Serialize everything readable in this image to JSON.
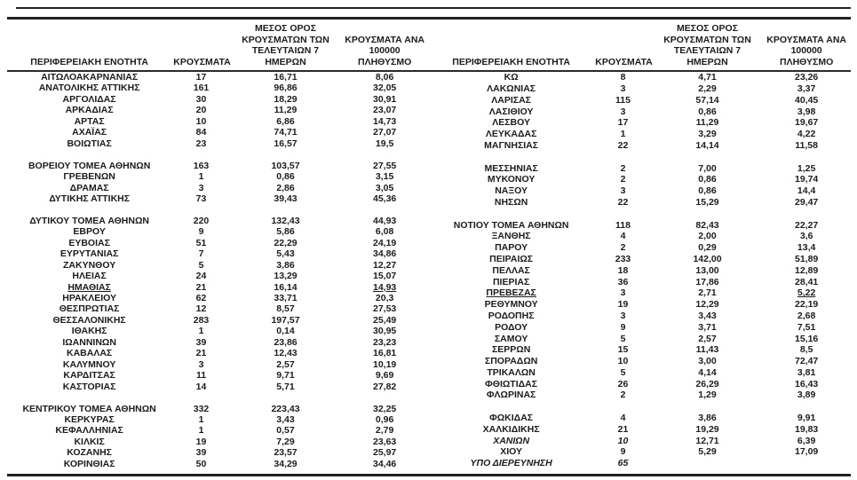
{
  "header": {
    "region": "ΠΕΡΙΦΕΡΕΙΑΚΗ ΕΝΟΤΗΤΑ",
    "cases": "ΚΡΟΥΣΜΑΤΑ",
    "avg7": "ΜΕΣΟΣ ΟΡΟΣ\nΚΡΟΥΣΜΑΤΩΝ ΤΩΝ\nΤΕΛΕΥΤΑΙΩΝ 7 ΗΜΕΡΩΝ",
    "per100k": "ΚΡΟΥΣΜΑΤΑ ΑΝΑ 100000\nΠΛΗΘΥΣΜΟ"
  },
  "left_table": {
    "groups": [
      [
        {
          "name": "ΑΙΤΩΛΟΑΚΑΡΝΑΝΙΑΣ",
          "cases": "17",
          "avg7": "16,71",
          "per100k": "8,06"
        },
        {
          "name": "ΑΝΑΤΟΛΙΚΗΣ ΑΤΤΙΚΗΣ",
          "cases": "161",
          "avg7": "96,86",
          "per100k": "32,05"
        },
        {
          "name": "ΑΡΓΟΛΙΔΑΣ",
          "cases": "30",
          "avg7": "18,29",
          "per100k": "30,91"
        },
        {
          "name": "ΑΡΚΑΔΙΑΣ",
          "cases": "20",
          "avg7": "11,29",
          "per100k": "23,07"
        },
        {
          "name": "ΑΡΤΑΣ",
          "cases": "10",
          "avg7": "6,86",
          "per100k": "14,73"
        },
        {
          "name": "ΑΧΑΪΑΣ",
          "cases": "84",
          "avg7": "74,71",
          "per100k": "27,07"
        },
        {
          "name": "ΒΟΙΩΤΙΑΣ",
          "cases": "23",
          "avg7": "16,57",
          "per100k": "19,5"
        }
      ],
      [
        {
          "name": "ΒΟΡΕΙΟΥ ΤΟΜΕΑ ΑΘΗΝΩΝ",
          "cases": "163",
          "avg7": "103,57",
          "per100k": "27,55"
        },
        {
          "name": "ΓΡΕΒΕΝΩΝ",
          "cases": "1",
          "avg7": "0,86",
          "per100k": "3,15"
        },
        {
          "name": "ΔΡΑΜΑΣ",
          "cases": "3",
          "avg7": "2,86",
          "per100k": "3,05"
        },
        {
          "name": "ΔΥΤΙΚΗΣ ΑΤΤΙΚΗΣ",
          "cases": "73",
          "avg7": "39,43",
          "per100k": "45,36"
        }
      ],
      [
        {
          "name": "ΔΥΤΙΚΟΥ ΤΟΜΕΑ ΑΘΗΝΩΝ",
          "cases": "220",
          "avg7": "132,43",
          "per100k": "44,93"
        },
        {
          "name": "ΕΒΡΟΥ",
          "cases": "9",
          "avg7": "5,86",
          "per100k": "6,08"
        },
        {
          "name": "ΕΥΒΟΙΑΣ",
          "cases": "51",
          "avg7": "22,29",
          "per100k": "24,19"
        },
        {
          "name": "ΕΥΡΥΤΑΝΙΑΣ",
          "cases": "7",
          "avg7": "5,43",
          "per100k": "34,86"
        },
        {
          "name": "ΖΑΚΥΝΘΟΥ",
          "cases": "5",
          "avg7": "3,86",
          "per100k": "12,27"
        },
        {
          "name": "ΗΛΕΙΑΣ",
          "cases": "24",
          "avg7": "13,29",
          "per100k": "15,07"
        },
        {
          "name": "ΗΜΑΘΙΑΣ",
          "cases": "21",
          "avg7": "16,14",
          "per100k": "14,93",
          "underline": true
        },
        {
          "name": "ΗΡΑΚΛΕΙΟΥ",
          "cases": "62",
          "avg7": "33,71",
          "per100k": "20,3"
        },
        {
          "name": "ΘΕΣΠΡΩΤΙΑΣ",
          "cases": "12",
          "avg7": "8,57",
          "per100k": "27,53"
        },
        {
          "name": "ΘΕΣΣΑΛΟΝΙΚΗΣ",
          "cases": "283",
          "avg7": "197,57",
          "per100k": "25,49"
        },
        {
          "name": "ΙΘΑΚΗΣ",
          "cases": "1",
          "avg7": "0,14",
          "per100k": "30,95"
        },
        {
          "name": "ΙΩΑΝΝΙΝΩΝ",
          "cases": "39",
          "avg7": "23,86",
          "per100k": "23,23"
        },
        {
          "name": "ΚΑΒΑΛΑΣ",
          "cases": "21",
          "avg7": "12,43",
          "per100k": "16,81"
        },
        {
          "name": "ΚΑΛΥΜΝΟΥ",
          "cases": "3",
          "avg7": "2,57",
          "per100k": "10,19"
        },
        {
          "name": "ΚΑΡΔΙΤΣΑΣ",
          "cases": "11",
          "avg7": "9,71",
          "per100k": "9,69"
        },
        {
          "name": "ΚΑΣΤΟΡΙΑΣ",
          "cases": "14",
          "avg7": "5,71",
          "per100k": "27,82"
        }
      ],
      [
        {
          "name": "ΚΕΝΤΡΙΚΟΥ ΤΟΜΕΑ ΑΘΗΝΩΝ",
          "cases": "332",
          "avg7": "223,43",
          "per100k": "32,25"
        },
        {
          "name": "ΚΕΡΚΥΡΑΣ",
          "cases": "1",
          "avg7": "3,43",
          "per100k": "0,96"
        },
        {
          "name": "ΚΕΦΑΛΛΗΝΙΑΣ",
          "cases": "1",
          "avg7": "0,57",
          "per100k": "2,79"
        },
        {
          "name": "ΚΙΛΚΙΣ",
          "cases": "19",
          "avg7": "7,29",
          "per100k": "23,63"
        },
        {
          "name": "ΚΟΖΑΝΗΣ",
          "cases": "39",
          "avg7": "23,57",
          "per100k": "25,97"
        },
        {
          "name": "ΚΟΡΙΝΘΙΑΣ",
          "cases": "50",
          "avg7": "34,29",
          "per100k": "34,46"
        }
      ]
    ]
  },
  "right_table": {
    "groups": [
      [
        {
          "name": "ΚΩ",
          "cases": "8",
          "avg7": "4,71",
          "per100k": "23,26"
        },
        {
          "name": "ΛΑΚΩΝΙΑΣ",
          "cases": "3",
          "avg7": "2,29",
          "per100k": "3,37"
        },
        {
          "name": "ΛΑΡΙΣΑΣ",
          "cases": "115",
          "avg7": "57,14",
          "per100k": "40,45"
        },
        {
          "name": "ΛΑΣΙΘΙΟΥ",
          "cases": "3",
          "avg7": "0,86",
          "per100k": "3,98"
        },
        {
          "name": "ΛΕΣΒΟΥ",
          "cases": "17",
          "avg7": "11,29",
          "per100k": "19,67"
        },
        {
          "name": "ΛΕΥΚΑΔΑΣ",
          "cases": "1",
          "avg7": "3,29",
          "per100k": "4,22"
        },
        {
          "name": "ΜΑΓΝΗΣΙΑΣ",
          "cases": "22",
          "avg7": "14,14",
          "per100k": "11,58"
        }
      ],
      [
        {
          "name": "ΜΕΣΣΗΝΙΑΣ",
          "cases": "2",
          "avg7": "7,00",
          "per100k": "1,25"
        },
        {
          "name": "ΜΥΚΟΝΟΥ",
          "cases": "2",
          "avg7": "0,86",
          "per100k": "19,74"
        },
        {
          "name": "ΝΑΞΟΥ",
          "cases": "3",
          "avg7": "0,86",
          "per100k": "14,4"
        },
        {
          "name": "ΝΗΣΩΝ",
          "cases": "22",
          "avg7": "15,29",
          "per100k": "29,47"
        }
      ],
      [
        {
          "name": "ΝΟΤΙΟΥ ΤΟΜΕΑ ΑΘΗΝΩΝ",
          "cases": "118",
          "avg7": "82,43",
          "per100k": "22,27"
        },
        {
          "name": "ΞΑΝΘΗΣ",
          "cases": "4",
          "avg7": "2,00",
          "per100k": "3,6"
        },
        {
          "name": "ΠΑΡΟΥ",
          "cases": "2",
          "avg7": "0,29",
          "per100k": "13,4"
        },
        {
          "name": "ΠΕΙΡΑΙΩΣ",
          "cases": "233",
          "avg7": "142,00",
          "per100k": "51,89"
        },
        {
          "name": "ΠΕΛΛΑΣ",
          "cases": "18",
          "avg7": "13,00",
          "per100k": "12,89"
        },
        {
          "name": "ΠΙΕΡΙΑΣ",
          "cases": "36",
          "avg7": "17,86",
          "per100k": "28,41"
        },
        {
          "name": "ΠΡΕΒΕΖΑΣ",
          "cases": "3",
          "avg7": "2,71",
          "per100k": "5,22",
          "underline": true
        },
        {
          "name": "ΡΕΘΥΜΝΟΥ",
          "cases": "19",
          "avg7": "12,29",
          "per100k": "22,19"
        },
        {
          "name": "ΡΟΔΟΠΗΣ",
          "cases": "3",
          "avg7": "3,43",
          "per100k": "2,68"
        },
        {
          "name": "ΡΟΔΟΥ",
          "cases": "9",
          "avg7": "3,71",
          "per100k": "7,51"
        },
        {
          "name": "ΣΑΜΟΥ",
          "cases": "5",
          "avg7": "2,57",
          "per100k": "15,16"
        },
        {
          "name": "ΣΕΡΡΩΝ",
          "cases": "15",
          "avg7": "11,43",
          "per100k": "8,5"
        },
        {
          "name": "ΣΠΟΡΑΔΩΝ",
          "cases": "10",
          "avg7": "3,00",
          "per100k": "72,47"
        },
        {
          "name": "ΤΡΙΚΑΛΩΝ",
          "cases": "5",
          "avg7": "4,14",
          "per100k": "3,81"
        },
        {
          "name": "ΦΘΙΩΤΙΔΑΣ",
          "cases": "26",
          "avg7": "26,29",
          "per100k": "16,43"
        },
        {
          "name": "ΦΛΩΡΙΝΑΣ",
          "cases": "2",
          "avg7": "1,29",
          "per100k": "3,89"
        }
      ],
      [
        {
          "name": "ΦΩΚΙΔΑΣ",
          "cases": "4",
          "avg7": "3,86",
          "per100k": "9,91"
        },
        {
          "name": "ΧΑΛΚΙΔΙΚΗΣ",
          "cases": "21",
          "avg7": "19,29",
          "per100k": "19,83"
        },
        {
          "name": "ΧΑΝΙΩΝ",
          "cases": "10",
          "avg7": "12,71",
          "per100k": "6,39",
          "italic": true
        },
        {
          "name": "ΧΙΟΥ",
          "cases": "9",
          "avg7": "5,29",
          "per100k": "17,09"
        },
        {
          "name": "ΥΠΟ ΔΙΕΡΕΥΝΗΣΗ",
          "cases": "65",
          "avg7": "",
          "per100k": "",
          "italic": true
        }
      ]
    ]
  }
}
